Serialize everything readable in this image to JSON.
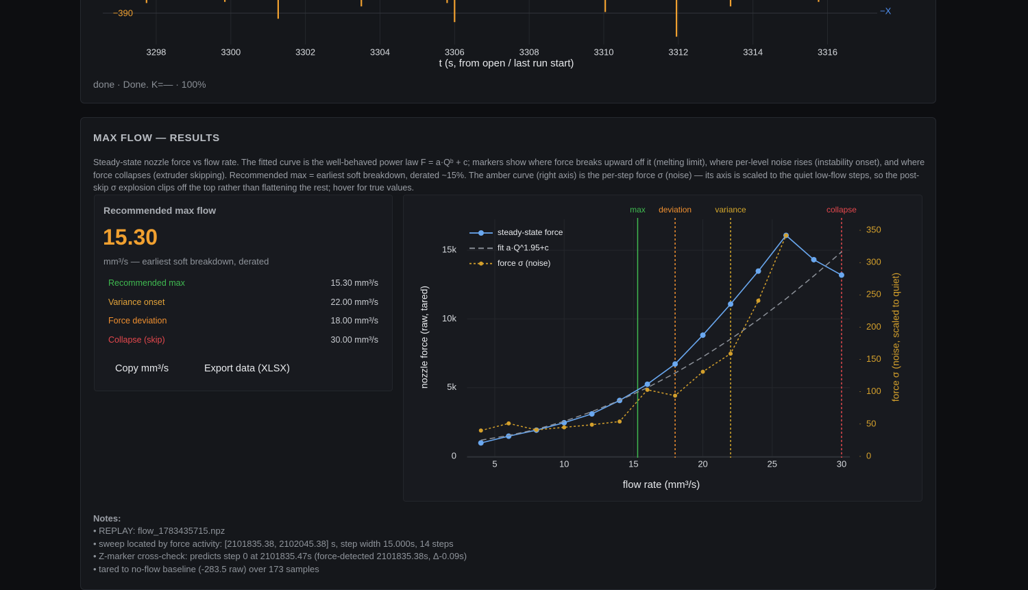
{
  "top_panel": {
    "status": "done · Done. K=— · 100%"
  },
  "results": {
    "title": "MAX FLOW — RESULTS",
    "description": "Steady-state nozzle force vs flow rate. The fitted curve is the well-behaved power law F = a·Qᵇ + c; markers show where force breaks upward off it (melting limit), where per-level noise rises (instability onset), and where force collapses (extruder skipping). Recommended max = earliest soft breakdown, derated ~15%. The amber curve (right axis) is the per-step force σ (noise) — its axis is scaled to the quiet low-flow steps, so the post-skip σ explosion clips off the top rather than flattening the rest; hover for true values.",
    "card_title": "Recommended max flow",
    "value": "15.30",
    "value_caption": "mm³/s — earliest soft breakdown, derated",
    "rows": [
      {
        "label": "Recommended max",
        "value": "15.30 mm³/s",
        "color": "#3fb950"
      },
      {
        "label": "Variance onset",
        "value": "22.00 mm³/s",
        "color": "#e3a33a"
      },
      {
        "label": "Force deviation",
        "value": "18.00 mm³/s",
        "color": "#f09030"
      },
      {
        "label": "Collapse (skip)",
        "value": "30.00 mm³/s",
        "color": "#e5484d"
      }
    ],
    "buttons": [
      "Copy mm³/s",
      "Export data (XLSX)"
    ]
  },
  "chart_data": [
    {
      "type": "spike",
      "x": [
        3297.74,
        3299.84,
        3301.27,
        3303.5,
        3305.8,
        3306.0,
        3310.04,
        3311.95,
        3313.4,
        3315.76
      ],
      "values": [
        -381,
        -380,
        -395,
        -384,
        -381,
        -398,
        -389,
        -411,
        -384,
        -380
      ],
      "color": "#f0a030",
      "xlim": [
        3296.2,
        3317.7
      ],
      "xticks": [
        3298,
        3300,
        3302,
        3304,
        3306,
        3308,
        3310,
        3312,
        3314,
        3316
      ],
      "ylim": [
        -418,
        -360
      ],
      "yticks": [
        {
          "value": -390,
          "label": "−390"
        }
      ],
      "xlabel": "t (s, from open / last run start)",
      "annotation": "−X",
      "grid": true
    },
    {
      "type": "line",
      "xlabel": "flow rate (mm³/s)",
      "ylabel": "nozzle force (raw, tared)",
      "y2label": "force σ (noise, scaled to quiet)",
      "xlim": [
        3,
        30.6
      ],
      "xticks": [
        5,
        10,
        15,
        20,
        25,
        30
      ],
      "ylim": [
        0,
        17250
      ],
      "yticks": [
        0,
        {
          "value": 5000,
          "label": "5k"
        },
        {
          "value": 10000,
          "label": "10k"
        },
        {
          "value": 15000,
          "label": "15k"
        }
      ],
      "y2lim": [
        0,
        367
      ],
      "y2ticks": [
        0,
        50,
        100,
        150,
        200,
        250,
        300,
        350
      ],
      "grid": true,
      "series": [
        {
          "name": "steady-state force",
          "color": "#6aa8f0",
          "line_style": "solid",
          "x": [
            4,
            6,
            8,
            10,
            12,
            14,
            16,
            18,
            20,
            22,
            24,
            26,
            28,
            30
          ],
          "values": [
            980,
            1470,
            1910,
            2450,
            3090,
            4070,
            5250,
            6720,
            8820,
            11080,
            13480,
            16080,
            14310,
            13190
          ]
        },
        {
          "name": "fit a·Q^1.95+c",
          "color": "#8d929a",
          "line_style": "dash",
          "x": [
            4,
            6,
            8,
            10,
            12,
            14,
            16,
            18,
            20,
            22,
            24,
            26,
            28,
            30
          ],
          "values": [
            1180,
            1520,
            1970,
            2550,
            3250,
            4080,
            5000,
            6060,
            7240,
            8530,
            9940,
            11470,
            13130,
            14880
          ]
        },
        {
          "name": "force σ (noise)",
          "color": "#d4a02c",
          "line_style": "dot",
          "axis": "y2",
          "x": [
            4,
            6,
            8,
            10,
            12,
            14,
            16,
            18,
            20,
            22,
            24,
            26
          ],
          "values": [
            40,
            51,
            41,
            45,
            49,
            54,
            103,
            94,
            131,
            159,
            241,
            342
          ]
        }
      ],
      "markers": [
        {
          "label": "max",
          "x": 15.3,
          "color": "#3fb950",
          "line_style": "solid"
        },
        {
          "label": "deviation",
          "x": 18,
          "color": "#f09030",
          "line_style": "dot"
        },
        {
          "label": "variance",
          "x": 22,
          "color": "#d4a72c",
          "line_style": "dot"
        },
        {
          "label": "collapse",
          "x": 30,
          "color": "#e5484d",
          "line_style": "dot"
        }
      ]
    }
  ],
  "notes": {
    "title": "Notes:",
    "items": [
      "• REPLAY: flow_1783435715.npz",
      "• sweep located by force activity: [2101835.38, 2102045.38] s, step width 15.000s, 14 steps",
      "• Z-marker cross-check: predicts step 0 at 2101835.47s (force-detected 2101835.38s, Δ-0.09s)",
      "• tared to no-flow baseline (-283.5 raw) over 173 samples"
    ]
  }
}
